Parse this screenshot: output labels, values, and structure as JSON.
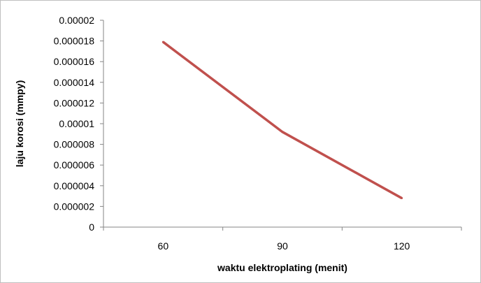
{
  "chart_data": {
    "type": "line",
    "title": "",
    "xlabel": "waktu elektroplating (menit)",
    "ylabel": "laju korosi (mmpy)",
    "categories": [
      "60",
      "90",
      "120"
    ],
    "series": [
      {
        "values": [
          1.79e-05,
          9.2e-06,
          2.8e-06
        ],
        "color": "#c0504d"
      }
    ],
    "ylim": [
      0,
      2e-05
    ],
    "y_ticks": [
      "0",
      "0.000002",
      "0.000004",
      "0.000006",
      "0.000008",
      "0.00001",
      "0.000012",
      "0.000014",
      "0.000016",
      "0.000018",
      "0.00002"
    ],
    "grid": false,
    "legend": "none"
  }
}
